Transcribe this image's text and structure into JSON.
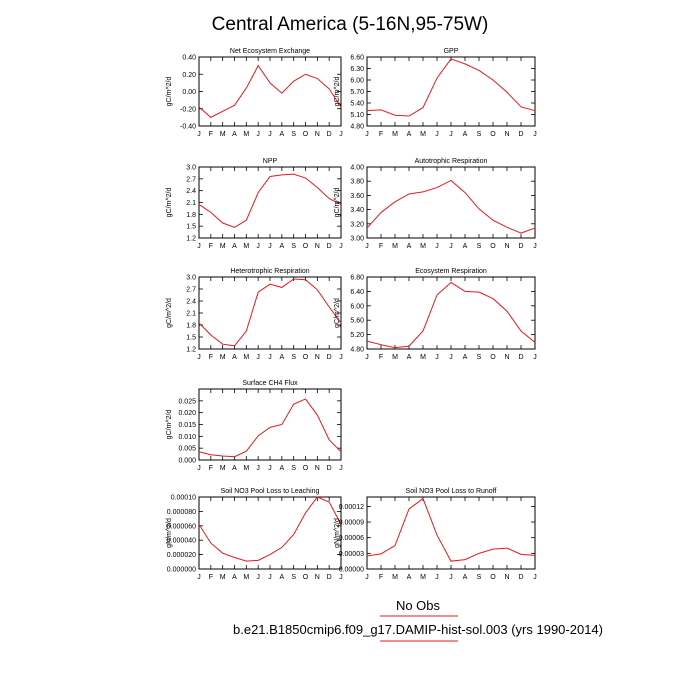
{
  "figure": {
    "title": "Central America (5-16N,95-75W)",
    "legend_text": "No Obs",
    "legend_line_color": "#e31a1c",
    "case_text": "b.e21.B1850cmip6.f09_g17.DAMIP-hist-sol.003 (yrs 1990-2014)",
    "case_line_color": "#e31a1c"
  },
  "chart_data": [
    {
      "type": "line",
      "title": "Net Ecosystem Exchange",
      "ylabel": "gC/m^2/d",
      "x": [
        "J",
        "F",
        "M",
        "A",
        "M",
        "J",
        "J",
        "A",
        "S",
        "O",
        "N",
        "D",
        "J"
      ],
      "series": [
        {
          "color": "#e31a1c",
          "values": [
            -0.18,
            -0.3,
            -0.23,
            -0.16,
            0.04,
            0.3,
            0.1,
            -0.02,
            0.12,
            0.2,
            0.15,
            0.03,
            -0.18
          ]
        }
      ],
      "ylim": [
        -0.4,
        0.4
      ],
      "yticks": [
        "-0.40",
        "-0.20",
        "0.00",
        "0.20",
        "0.40"
      ],
      "grid": false
    },
    {
      "type": "line",
      "title": "GPP",
      "ylabel": "gC/m^2/d",
      "x": [
        "J",
        "F",
        "M",
        "A",
        "M",
        "J",
        "J",
        "A",
        "S",
        "O",
        "N",
        "D",
        "J"
      ],
      "series": [
        {
          "color": "#e31a1c",
          "values": [
            5.2,
            5.22,
            5.08,
            5.06,
            5.28,
            6.05,
            6.55,
            6.42,
            6.25,
            6.0,
            5.68,
            5.3,
            5.2
          ]
        }
      ],
      "ylim": [
        4.8,
        6.6
      ],
      "yticks": [
        "4.80",
        "5.10",
        "5.40",
        "5.70",
        "6.00",
        "6.30",
        "6.60"
      ],
      "grid": false
    },
    {
      "type": "line",
      "title": "NPP",
      "ylabel": "gC/m^2/d",
      "x": [
        "J",
        "F",
        "M",
        "A",
        "M",
        "J",
        "J",
        "A",
        "S",
        "O",
        "N",
        "D",
        "J"
      ],
      "series": [
        {
          "color": "#e31a1c",
          "values": [
            2.05,
            1.85,
            1.58,
            1.47,
            1.65,
            2.35,
            2.76,
            2.8,
            2.82,
            2.72,
            2.48,
            2.2,
            2.05
          ]
        }
      ],
      "ylim": [
        1.2,
        3.0
      ],
      "yticks": [
        "1.2",
        "1.5",
        "1.8",
        "2.1",
        "2.4",
        "2.7",
        "3.0"
      ],
      "grid": false
    },
    {
      "type": "line",
      "title": "Autotrophic Respiration",
      "ylabel": "gC/m^2/d",
      "x": [
        "J",
        "F",
        "M",
        "A",
        "M",
        "J",
        "J",
        "A",
        "S",
        "O",
        "N",
        "D",
        "J"
      ],
      "series": [
        {
          "color": "#e31a1c",
          "values": [
            3.14,
            3.36,
            3.51,
            3.62,
            3.65,
            3.71,
            3.81,
            3.64,
            3.41,
            3.25,
            3.15,
            3.07,
            3.14
          ]
        }
      ],
      "ylim": [
        3.0,
        4.0
      ],
      "yticks": [
        "3.00",
        "3.20",
        "3.40",
        "3.60",
        "3.80",
        "4.00"
      ],
      "grid": false
    },
    {
      "type": "line",
      "title": "Heterotrophic Respiration",
      "ylabel": "gC/m^2/d",
      "x": [
        "J",
        "F",
        "M",
        "A",
        "M",
        "J",
        "J",
        "A",
        "S",
        "O",
        "N",
        "D",
        "J"
      ],
      "series": [
        {
          "color": "#e31a1c",
          "values": [
            1.85,
            1.55,
            1.32,
            1.28,
            1.65,
            2.62,
            2.82,
            2.74,
            2.95,
            2.93,
            2.68,
            2.25,
            1.85
          ]
        }
      ],
      "ylim": [
        1.2,
        3.0
      ],
      "yticks": [
        "1.2",
        "1.5",
        "1.8",
        "2.1",
        "2.4",
        "2.7",
        "3.0"
      ],
      "grid": false
    },
    {
      "type": "line",
      "title": "Ecosystem Respiration",
      "ylabel": "gC/m^2/d",
      "x": [
        "J",
        "F",
        "M",
        "A",
        "M",
        "J",
        "J",
        "A",
        "S",
        "O",
        "N",
        "D",
        "J"
      ],
      "series": [
        {
          "color": "#e31a1c",
          "values": [
            5.02,
            4.92,
            4.84,
            4.88,
            5.3,
            6.3,
            6.65,
            6.4,
            6.38,
            6.2,
            5.85,
            5.3,
            4.98
          ]
        }
      ],
      "ylim": [
        4.8,
        6.8
      ],
      "yticks": [
        "4.80",
        "5.20",
        "5.60",
        "6.00",
        "6.40",
        "6.80"
      ],
      "grid": false
    },
    {
      "type": "line",
      "title": "Surface CH4 Flux",
      "ylabel": "gC/m^2/d",
      "x": [
        "J",
        "F",
        "M",
        "A",
        "M",
        "J",
        "J",
        "A",
        "S",
        "O",
        "N",
        "D",
        "J"
      ],
      "series": [
        {
          "color": "#e31a1c",
          "values": [
            0.0035,
            0.0022,
            0.0017,
            0.0014,
            0.0037,
            0.0102,
            0.0138,
            0.015,
            0.0236,
            0.0258,
            0.019,
            0.0085,
            0.0035
          ]
        }
      ],
      "ylim": [
        0.0,
        0.03
      ],
      "yticks": [
        "0.000",
        "0.005",
        "0.010",
        "0.015",
        "0.020",
        "0.025"
      ],
      "grid": false
    },
    {
      "type": "line",
      "title": "Soil NO3 Pool Loss to Leaching",
      "ylabel": "gN/m^2/d",
      "x": [
        "J",
        "F",
        "M",
        "A",
        "M",
        "J",
        "J",
        "A",
        "S",
        "O",
        "N",
        "D",
        "J"
      ],
      "series": [
        {
          "color": "#e31a1c",
          "values": [
            6.2e-05,
            3.6e-05,
            2.2e-05,
            1.6e-05,
            1.1e-05,
            1.2e-05,
            2e-05,
            3e-05,
            4.8e-05,
            7.8e-05,
            0.0001,
            9.3e-05,
            6.2e-05
          ]
        }
      ],
      "ylim": [
        0.0,
        0.0001
      ],
      "yticks": [
        "0.000000",
        "0.000020",
        "0.000040",
        "0.000060",
        "0.000080",
        "0.00010"
      ],
      "grid": false
    },
    {
      "type": "line",
      "title": "Soil NO3 Pool Loss to Runoff",
      "ylabel": "gN/m^2/d",
      "x": [
        "J",
        "F",
        "M",
        "A",
        "M",
        "J",
        "J",
        "A",
        "S",
        "O",
        "N",
        "D",
        "J"
      ],
      "series": [
        {
          "color": "#e31a1c",
          "values": [
            2.5e-05,
            2.9e-05,
            4.5e-05,
            0.000115,
            0.000135,
            6.5e-05,
            1.5e-05,
            1.8e-05,
            3e-05,
            3.8e-05,
            4e-05,
            2.8e-05,
            2.6e-05
          ]
        }
      ],
      "ylim": [
        0.0,
        0.000138
      ],
      "yticks": [
        "0.00000",
        "0.00003",
        "0.00006",
        "0.00009",
        "0.00012"
      ],
      "grid": false
    }
  ]
}
